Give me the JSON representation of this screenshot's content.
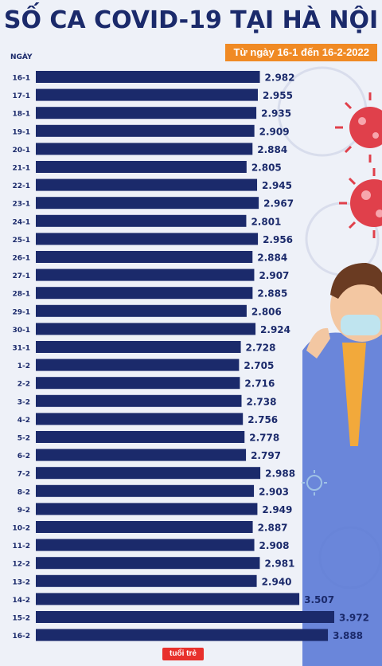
{
  "header": {
    "title": "SỐ CA COVID-19 TẠI HÀ NỘI",
    "subtitle": "Từ ngày 16-1 đến 16-2-2022"
  },
  "chart_data": {
    "type": "bar",
    "orientation": "horizontal",
    "title": "SỐ CA COVID-19 TẠI HÀ NỘI",
    "subtitle": "Từ ngày 16-1 đến 16-2-2022",
    "ylabel": "NGÀY",
    "categories": [
      "16-1",
      "17-1",
      "18-1",
      "19-1",
      "20-1",
      "21-1",
      "22-1",
      "23-1",
      "24-1",
      "25-1",
      "26-1",
      "27-1",
      "28-1",
      "29-1",
      "30-1",
      "31-1",
      "1-2",
      "2-2",
      "3-2",
      "4-2",
      "5-2",
      "6-2",
      "7-2",
      "8-2",
      "9-2",
      "10-2",
      "11-2",
      "12-2",
      "13-2",
      "14-2",
      "15-2",
      "16-2"
    ],
    "values": [
      2982,
      2955,
      2935,
      2909,
      2884,
      2805,
      2945,
      2967,
      2801,
      2956,
      2884,
      2907,
      2885,
      2806,
      2924,
      2728,
      2705,
      2716,
      2738,
      2756,
      2778,
      2797,
      2988,
      2903,
      2949,
      2887,
      2908,
      2981,
      2940,
      3507,
      3972,
      3888
    ],
    "value_labels": [
      "2.982",
      "2.955",
      "2.935",
      "2.909",
      "2.884",
      "2.805",
      "2.945",
      "2.967",
      "2.801",
      "2.956",
      "2.884",
      "2.907",
      "2.885",
      "2.806",
      "2.924",
      "2.728",
      "2.705",
      "2.716",
      "2.738",
      "2.756",
      "2.778",
      "2.797",
      "2.988",
      "2.903",
      "2.949",
      "2.887",
      "2.908",
      "2.981",
      "2.940",
      "3.507",
      "3.972",
      "3.888"
    ],
    "colors": {
      "bar": "#1b2a6b",
      "label": "#1b2a6b",
      "accent": "#f08a24",
      "virus": "#e0404b"
    },
    "grid": false
  },
  "footer": {
    "logo_text": "tuổi trẻ"
  }
}
